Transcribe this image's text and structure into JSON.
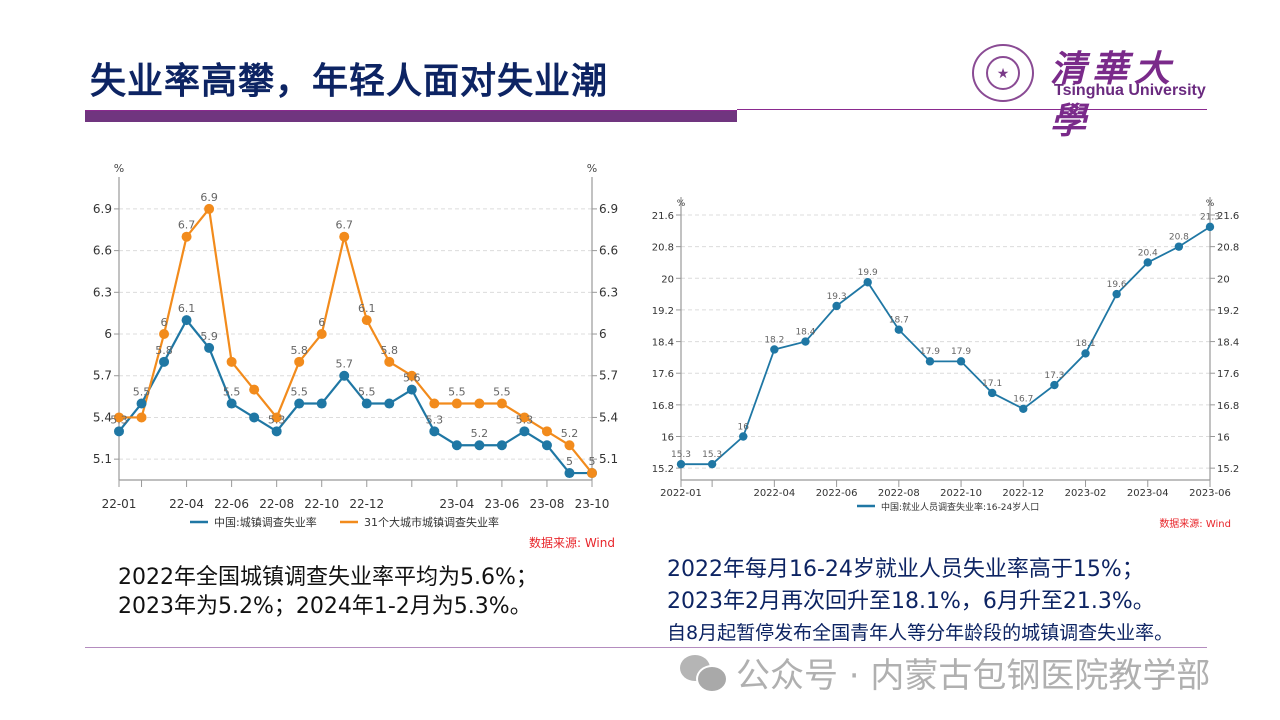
{
  "header": {
    "title": "失业率高攀，年轻人面对失业潮",
    "logo_cn": "清華大學",
    "logo_en": "Tsinghua University",
    "logo_seal_icon": "★"
  },
  "colors": {
    "title": "#0d2463",
    "accent_bar": "#70357f",
    "series_blue": "#1f77a4",
    "series_orange": "#f28b1c",
    "source_red": "#e8262b"
  },
  "chart_data": [
    {
      "type": "line",
      "title": "",
      "xlabel": "",
      "ylabel": "%",
      "ylabel_right": "%",
      "ylim": [
        4.95,
        7.0
      ],
      "yticks": [
        5.1,
        5.4,
        5.7,
        6,
        6.3,
        6.6,
        6.9
      ],
      "ytick_labels": [
        "5.1",
        "5.4",
        "5.7",
        "6",
        "6.3",
        "6.6",
        "6.9"
      ],
      "x": [
        "22-01",
        "22-02",
        "22-03",
        "22-04",
        "22-05",
        "22-06",
        "22-07",
        "22-08",
        "22-09",
        "22-10",
        "22-11",
        "22-12",
        "23-01",
        "23-02",
        "23-03",
        "23-04",
        "23-05",
        "23-06",
        "23-07",
        "23-08",
        "23-09",
        "23-10"
      ],
      "xtick_labels": [
        "22-01",
        "",
        "",
        "22-04",
        "",
        "22-06",
        "",
        "22-08",
        "",
        "22-10",
        "",
        "22-12",
        "",
        "",
        "",
        "23-04",
        "",
        "23-06",
        "",
        "23-08",
        "",
        "23-10"
      ],
      "xtick_marks": [
        0,
        1,
        3,
        5,
        7,
        9,
        11,
        13,
        15,
        17,
        19,
        21
      ],
      "grid": true,
      "legend_position": "bottom",
      "series": [
        {
          "name": "中国:城镇调查失业率",
          "color": "#1f77a4",
          "values": [
            5.3,
            5.5,
            5.8,
            6.1,
            5.9,
            5.5,
            5.4,
            5.3,
            5.5,
            5.5,
            5.7,
            5.5,
            5.5,
            5.6,
            5.3,
            5.2,
            5.2,
            5.2,
            5.3,
            5.2,
            5.0,
            5.0
          ],
          "labels": [
            "5.3",
            "5.5",
            "5.8",
            "6.1",
            "5.9",
            "5.5",
            "",
            "5.3",
            "5.5",
            "",
            "5.7",
            "5.5",
            "",
            "5.6",
            "5.3",
            "",
            "5.2",
            "",
            "5.3",
            "",
            "5",
            ""
          ]
        },
        {
          "name": "31个大城市城镇调查失业率",
          "color": "#f28b1c",
          "values": [
            5.4,
            5.4,
            6.0,
            6.7,
            6.9,
            5.8,
            5.6,
            5.4,
            5.8,
            6.0,
            6.7,
            6.1,
            5.8,
            5.7,
            5.5,
            5.5,
            5.5,
            5.5,
            5.4,
            5.3,
            5.2,
            5.0
          ],
          "labels": [
            "",
            "",
            "6",
            "6.7",
            "6.9",
            "",
            "",
            "",
            "5.8",
            "6",
            "6.7",
            "6.1",
            "5.8",
            "",
            "",
            "5.5",
            "",
            "5.5",
            "",
            "",
            "5.2",
            "5"
          ]
        }
      ],
      "source": "数据来源: Wind"
    },
    {
      "type": "line",
      "title": "",
      "xlabel": "",
      "ylabel": "%",
      "ylabel_right": "%",
      "ylim": [
        14.9,
        21.6
      ],
      "yticks": [
        15.2,
        16,
        16.8,
        17.6,
        18.4,
        19.2,
        20,
        20.8,
        21.6
      ],
      "ytick_labels": [
        "15.2",
        "16",
        "16.8",
        "17.6",
        "18.4",
        "19.2",
        "20",
        "20.8",
        "21.6"
      ],
      "x": [
        "2022-01",
        "2022-02",
        "2022-03",
        "2022-04",
        "2022-05",
        "2022-06",
        "2022-07",
        "2022-08",
        "2022-09",
        "2022-10",
        "2022-11",
        "2022-12",
        "2023-01",
        "2023-02",
        "2023-03",
        "2023-04",
        "2023-05",
        "2023-06"
      ],
      "xtick_labels": [
        "2022-01",
        "",
        "",
        "2022-04",
        "",
        "2022-06",
        "",
        "2022-08",
        "",
        "2022-10",
        "",
        "2022-12",
        "",
        "2023-02",
        "",
        "2023-04",
        "",
        "2023-06"
      ],
      "xtick_marks": [
        0,
        1,
        3,
        5,
        7,
        9,
        11,
        13,
        15,
        17
      ],
      "grid": true,
      "legend_position": "bottom",
      "series": [
        {
          "name": "中国:就业人员调查失业率:16-24岁人口",
          "color": "#1f77a4",
          "values": [
            15.3,
            15.3,
            16,
            18.2,
            18.4,
            19.3,
            19.9,
            18.7,
            17.9,
            17.9,
            17.1,
            16.7,
            17.3,
            18.1,
            19.6,
            20.4,
            20.8,
            21.3
          ],
          "labels": [
            "15.3",
            "15.3",
            "16",
            "18.2",
            "18.4",
            "19.3",
            "19.9",
            "18.7",
            "17.9",
            "17.9",
            "17.1",
            "16.7",
            "17.3",
            "18.1",
            "19.6",
            "20.4",
            "20.8",
            "21.3"
          ]
        }
      ],
      "source": "数据来源: Wind"
    }
  ],
  "text_left": {
    "line1": "2022年全国城镇调查失业率平均为5.6%；",
    "line2": "2023年为5.2%；2024年1-2月为5.3%。"
  },
  "text_right": {
    "line1": "2022年每月16-24岁就业人员失业率高于15%；",
    "line2": "2023年2月再次回升至18.1%，6月升至21.3%。",
    "line3": "自8月起暂停发布全国青年人等分年龄段的城镇调查失业率。"
  },
  "watermark": {
    "text": "公众号 · 内蒙古包钢医院教学部"
  }
}
